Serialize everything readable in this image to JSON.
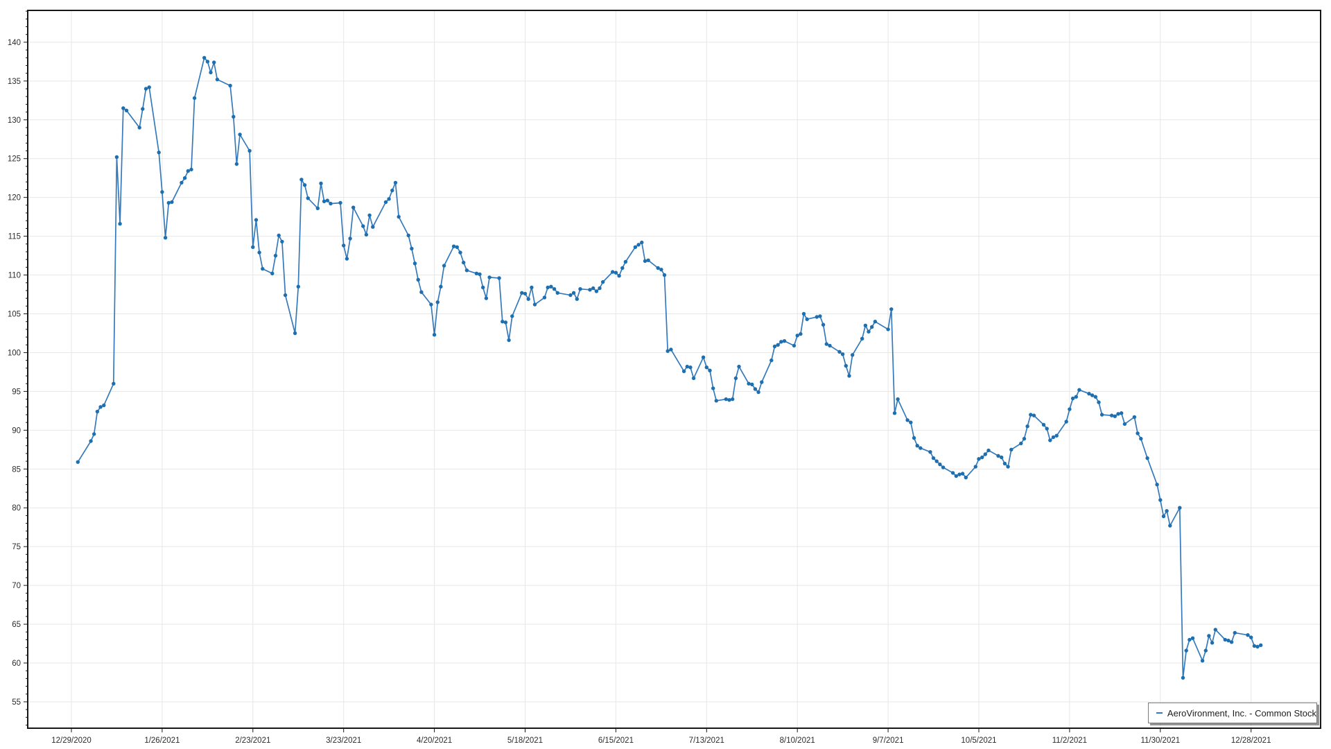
{
  "legend": {
    "label": "AeroVironment, Inc. - Common Stock",
    "position": "bottom-right"
  },
  "colors": {
    "line": "#3579bb",
    "marker": "#1d6fb0",
    "grid": "#e7e7e7",
    "axis": "#161616",
    "tick_label": "#2b2b2b",
    "legend_border": "#7a7a7a",
    "background": "#ffffff"
  },
  "chart_data": {
    "type": "line",
    "series_name": "AeroVironment, Inc. - Common Stock",
    "title": "",
    "xlabel": "",
    "ylabel": "",
    "grid": true,
    "legend_position": "bottom-right",
    "y_axis": {
      "min_label": 55,
      "max_label": 140,
      "step": 5,
      "minor_step": 1,
      "ylim": [
        51.6,
        144.1
      ]
    },
    "x_tick_labels": [
      "12/29/2020",
      "1/26/2021",
      "2/23/2021",
      "3/23/2021",
      "4/20/2021",
      "5/18/2021",
      "6/15/2021",
      "7/13/2021",
      "8/10/2021",
      "9/7/2021",
      "10/5/2021",
      "11/2/2021",
      "11/30/2021",
      "12/28/2021"
    ],
    "x_tick_interval_days": 28,
    "dates": [
      "12/31/2020",
      "1/4/2021",
      "1/5/2021",
      "1/6/2021",
      "1/7/2021",
      "1/8/2021",
      "1/11/2021",
      "1/12/2021",
      "1/13/2021",
      "1/14/2021",
      "1/15/2021",
      "1/19/2021",
      "1/20/2021",
      "1/21/2021",
      "1/22/2021",
      "1/25/2021",
      "1/26/2021",
      "1/27/2021",
      "1/28/2021",
      "1/29/2021",
      "2/1/2021",
      "2/2/2021",
      "2/3/2021",
      "2/4/2021",
      "2/5/2021",
      "2/8/2021",
      "2/9/2021",
      "2/10/2021",
      "2/11/2021",
      "2/12/2021",
      "2/16/2021",
      "2/17/2021",
      "2/18/2021",
      "2/19/2021",
      "2/22/2021",
      "2/23/2021",
      "2/24/2021",
      "2/25/2021",
      "2/26/2021",
      "3/1/2021",
      "3/2/2021",
      "3/3/2021",
      "3/4/2021",
      "3/5/2021",
      "3/8/2021",
      "3/9/2021",
      "3/10/2021",
      "3/11/2021",
      "3/12/2021",
      "3/15/2021",
      "3/16/2021",
      "3/17/2021",
      "3/18/2021",
      "3/19/2021",
      "3/22/2021",
      "3/23/2021",
      "3/24/2021",
      "3/25/2021",
      "3/26/2021",
      "3/29/2021",
      "3/30/2021",
      "3/31/2021",
      "4/1/2021",
      "4/5/2021",
      "4/6/2021",
      "4/7/2021",
      "4/8/2021",
      "4/9/2021",
      "4/12/2021",
      "4/13/2021",
      "4/14/2021",
      "4/15/2021",
      "4/16/2021",
      "4/19/2021",
      "4/20/2021",
      "4/21/2021",
      "4/22/2021",
      "4/23/2021",
      "4/26/2021",
      "4/27/2021",
      "4/28/2021",
      "4/29/2021",
      "4/30/2021",
      "5/3/2021",
      "5/4/2021",
      "5/5/2021",
      "5/6/2021",
      "5/7/2021",
      "5/10/2021",
      "5/11/2021",
      "5/12/2021",
      "5/13/2021",
      "5/14/2021",
      "5/17/2021",
      "5/18/2021",
      "5/19/2021",
      "5/20/2021",
      "5/21/2021",
      "5/24/2021",
      "5/25/2021",
      "5/26/2021",
      "5/27/2021",
      "5/28/2021",
      "6/1/2021",
      "6/2/2021",
      "6/3/2021",
      "6/4/2021",
      "6/7/2021",
      "6/8/2021",
      "6/9/2021",
      "6/10/2021",
      "6/11/2021",
      "6/14/2021",
      "6/15/2021",
      "6/16/2021",
      "6/17/2021",
      "6/18/2021",
      "6/21/2021",
      "6/22/2021",
      "6/23/2021",
      "6/24/2021",
      "6/25/2021",
      "6/28/2021",
      "6/29/2021",
      "6/30/2021",
      "7/1/2021",
      "7/2/2021",
      "7/6/2021",
      "7/7/2021",
      "7/8/2021",
      "7/9/2021",
      "7/12/2021",
      "7/13/2021",
      "7/14/2021",
      "7/15/2021",
      "7/16/2021",
      "7/19/2021",
      "7/20/2021",
      "7/21/2021",
      "7/22/2021",
      "7/23/2021",
      "7/26/2021",
      "7/27/2021",
      "7/28/2021",
      "7/29/2021",
      "7/30/2021",
      "8/2/2021",
      "8/3/2021",
      "8/4/2021",
      "8/5/2021",
      "8/6/2021",
      "8/9/2021",
      "8/10/2021",
      "8/11/2021",
      "8/12/2021",
      "8/13/2021",
      "8/16/2021",
      "8/17/2021",
      "8/18/2021",
      "8/19/2021",
      "8/20/2021",
      "8/23/2021",
      "8/24/2021",
      "8/25/2021",
      "8/26/2021",
      "8/27/2021",
      "8/30/2021",
      "8/31/2021",
      "9/1/2021",
      "9/2/2021",
      "9/3/2021",
      "9/7/2021",
      "9/8/2021",
      "9/9/2021",
      "9/10/2021",
      "9/13/2021",
      "9/14/2021",
      "9/15/2021",
      "9/16/2021",
      "9/17/2021",
      "9/20/2021",
      "9/21/2021",
      "9/22/2021",
      "9/23/2021",
      "9/24/2021",
      "9/27/2021",
      "9/28/2021",
      "9/29/2021",
      "9/30/2021",
      "10/1/2021",
      "10/4/2021",
      "10/5/2021",
      "10/6/2021",
      "10/7/2021",
      "10/8/2021",
      "10/11/2021",
      "10/12/2021",
      "10/13/2021",
      "10/14/2021",
      "10/15/2021",
      "10/18/2021",
      "10/19/2021",
      "10/20/2021",
      "10/21/2021",
      "10/22/2021",
      "10/25/2021",
      "10/26/2021",
      "10/27/2021",
      "10/28/2021",
      "10/29/2021",
      "11/1/2021",
      "11/2/2021",
      "11/3/2021",
      "11/4/2021",
      "11/5/2021",
      "11/8/2021",
      "11/9/2021",
      "11/10/2021",
      "11/11/2021",
      "11/12/2021",
      "11/15/2021",
      "11/16/2021",
      "11/17/2021",
      "11/18/2021",
      "11/19/2021",
      "11/22/2021",
      "11/23/2021",
      "11/24/2021",
      "11/26/2021",
      "11/29/2021",
      "11/30/2021",
      "12/1/2021",
      "12/2/2021",
      "12/3/2021",
      "12/6/2021",
      "12/7/2021",
      "12/8/2021",
      "12/9/2021",
      "12/10/2021",
      "12/13/2021",
      "12/14/2021",
      "12/15/2021",
      "12/16/2021",
      "12/17/2021",
      "12/20/2021",
      "12/21/2021",
      "12/22/2021",
      "12/23/2021",
      "12/27/2021",
      "12/28/2021",
      "12/29/2021",
      "12/30/2021",
      "12/31/2021"
    ],
    "values": [
      85.9,
      88.6,
      89.5,
      92.4,
      93.0,
      93.2,
      96.0,
      125.2,
      116.6,
      131.5,
      131.2,
      129.0,
      131.4,
      134.0,
      134.2,
      125.8,
      120.7,
      114.8,
      119.3,
      119.4,
      121.9,
      122.5,
      123.4,
      123.6,
      132.8,
      138.0,
      137.5,
      136.1,
      137.4,
      135.2,
      134.4,
      130.4,
      124.3,
      128.1,
      126.0,
      113.6,
      117.1,
      112.9,
      110.8,
      110.2,
      112.5,
      115.1,
      114.3,
      107.4,
      102.5,
      108.5,
      122.3,
      121.6,
      119.9,
      118.6,
      121.8,
      119.5,
      119.6,
      119.2,
      119.3,
      113.8,
      112.1,
      114.7,
      118.7,
      116.3,
      115.2,
      117.7,
      116.2,
      119.4,
      119.8,
      120.9,
      121.9,
      117.5,
      115.1,
      113.4,
      111.5,
      109.4,
      107.8,
      106.2,
      102.3,
      106.5,
      108.5,
      111.2,
      113.7,
      113.6,
      112.9,
      111.6,
      110.6,
      110.2,
      110.1,
      108.4,
      107.0,
      109.7,
      109.6,
      104.0,
      103.9,
      101.6,
      104.7,
      107.7,
      107.6,
      106.9,
      108.4,
      106.2,
      107.1,
      108.4,
      108.5,
      108.2,
      107.7,
      107.4,
      107.7,
      106.9,
      108.2,
      108.1,
      108.3,
      107.9,
      108.3,
      109.1,
      110.4,
      110.3,
      109.9,
      110.9,
      111.7,
      113.6,
      113.9,
      114.2,
      111.8,
      111.9,
      110.9,
      110.7,
      110.0,
      100.2,
      100.4,
      97.6,
      98.2,
      98.1,
      96.7,
      99.4,
      98.1,
      97.7,
      95.4,
      93.8,
      94.0,
      93.9,
      94.0,
      96.7,
      98.2,
      96.0,
      95.9,
      95.3,
      94.9,
      96.2,
      99.0,
      100.8,
      101.0,
      101.4,
      101.5,
      100.9,
      102.2,
      102.4,
      105.0,
      104.3,
      104.6,
      104.7,
      103.6,
      101.1,
      100.9,
      100.1,
      99.8,
      98.3,
      97.0,
      99.7,
      101.8,
      103.5,
      102.7,
      103.3,
      104.0,
      103.0,
      105.6,
      92.2,
      94.0,
      91.3,
      91.0,
      89.0,
      88.0,
      87.7,
      87.2,
      86.4,
      86.0,
      85.6,
      85.2,
      84.5,
      84.1,
      84.3,
      84.4,
      83.9,
      85.3,
      86.3,
      86.5,
      86.9,
      87.4,
      86.7,
      86.5,
      85.7,
      85.3,
      87.5,
      88.3,
      88.9,
      90.5,
      92.0,
      91.9,
      90.7,
      90.2,
      88.7,
      89.1,
      89.3,
      91.1,
      92.7,
      94.1,
      94.3,
      95.2,
      94.7,
      94.5,
      94.3,
      93.6,
      92.0,
      91.9,
      91.8,
      92.1,
      92.2,
      90.8,
      91.7,
      89.6,
      88.9,
      86.4,
      83.0,
      81.0,
      78.9,
      79.6,
      77.7,
      80.0,
      58.1,
      61.6,
      63.0,
      63.2,
      60.3,
      61.6,
      63.5,
      62.6,
      64.3,
      63.0,
      62.9,
      62.7,
      63.9,
      63.6,
      63.3,
      62.2,
      62.1,
      62.3
    ]
  }
}
